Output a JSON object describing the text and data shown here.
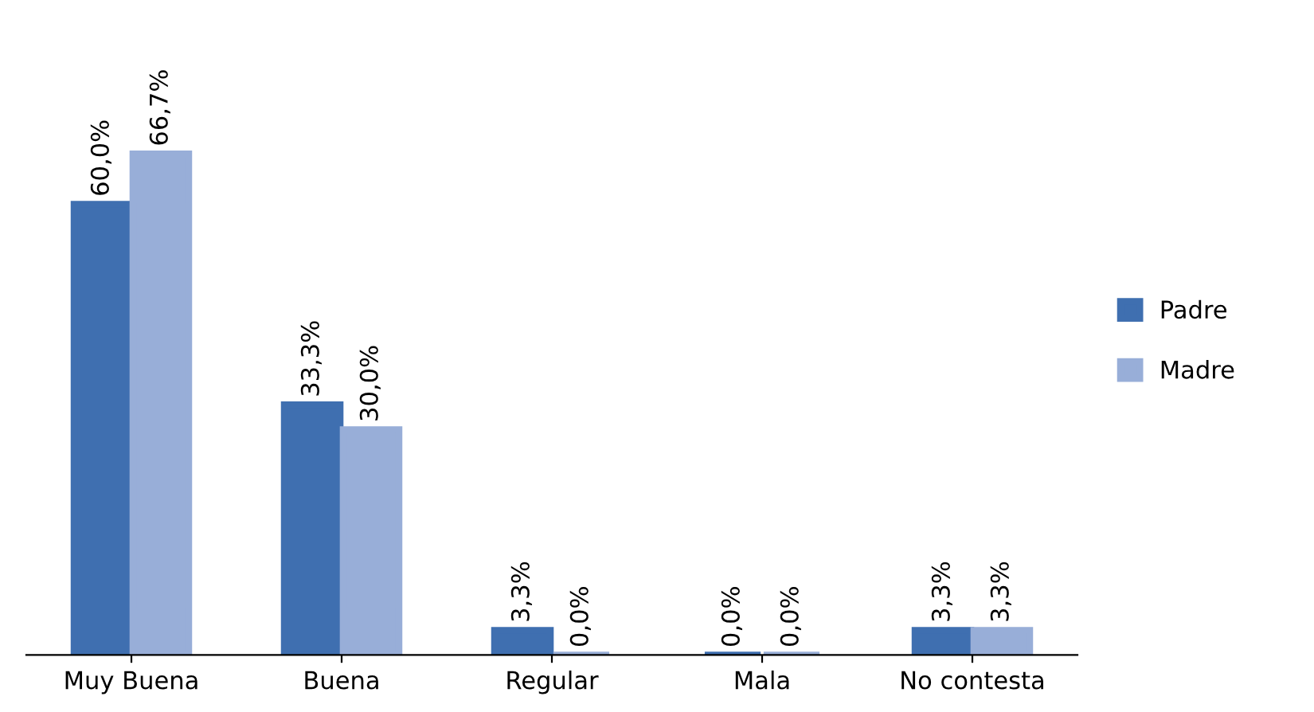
{
  "chart_data": {
    "type": "bar",
    "categories": [
      "Muy Buena",
      "Buena",
      "Regular",
      "Mala",
      "No contesta"
    ],
    "series": [
      {
        "name": "Padre",
        "color": "#3f6fb0",
        "values": [
          60.0,
          33.3,
          3.3,
          0.0,
          3.3
        ],
        "value_labels": [
          "60,0%",
          "33,3%",
          "3,3%",
          "0,0%",
          "3,3%"
        ]
      },
      {
        "name": "Madre",
        "color": "#98aed8",
        "values": [
          66.7,
          30.0,
          0.0,
          0.0,
          3.3
        ],
        "value_labels": [
          "66,7%",
          "30,0%",
          "0,0%",
          "0,0%",
          "3,3%"
        ]
      }
    ],
    "legend": "right",
    "grid": false
  }
}
